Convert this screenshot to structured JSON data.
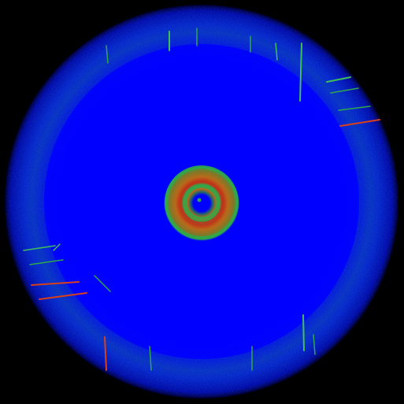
{
  "image": {
    "subject": "fisheye-heatmap-disc",
    "colors": {
      "background": "#000000",
      "disc_center": "#0000ff",
      "disc_edge_glow": "#1a7a6a",
      "ring_green": "#2ea84a",
      "ring_orange": "#b86a1a",
      "ring_red": "#c0331a",
      "streak_green": "#3fbf5a",
      "streak_red": "#d8401c"
    }
  }
}
